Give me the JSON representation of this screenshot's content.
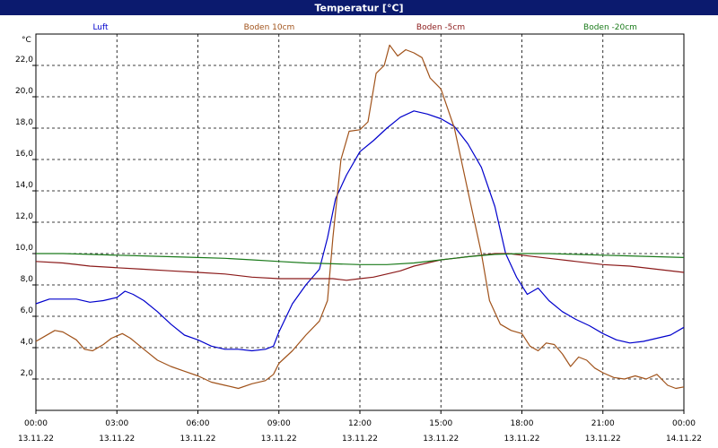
{
  "window": {
    "title": "Temperatur [°C]"
  },
  "colors": {
    "title_bar": "#0b1a6e",
    "title_text": "#ffffff"
  },
  "chart_data": {
    "type": "line",
    "title": "Temperatur [°C]",
    "ylabel": "°C",
    "xlabel": "",
    "grid": true,
    "legend_placement": "top",
    "ylim": [
      0,
      24
    ],
    "xlim": [
      0,
      24
    ],
    "y_ticks": [
      "2,0",
      "4,0",
      "6,0",
      "8,0",
      "10,0",
      "12,0",
      "14,0",
      "16,0",
      "18,0",
      "20,0",
      "22,0"
    ],
    "x_ticks": [
      {
        "time": "00:00",
        "date": "13.11.22"
      },
      {
        "time": "03:00",
        "date": "13.11.22"
      },
      {
        "time": "06:00",
        "date": "13.11.22"
      },
      {
        "time": "09:00",
        "date": "13.11.22"
      },
      {
        "time": "12:00",
        "date": "13.11.22"
      },
      {
        "time": "15:00",
        "date": "13.11.22"
      },
      {
        "time": "18:00",
        "date": "13.11.22"
      },
      {
        "time": "21:00",
        "date": "13.11.22"
      },
      {
        "time": "00:00",
        "date": "14.11.22"
      }
    ],
    "x_unit": "hours since 13.11.22 00:00",
    "series": [
      {
        "name": "Luft",
        "color": "#0000cc",
        "points": [
          [
            0,
            6.8
          ],
          [
            0.5,
            7.1
          ],
          [
            1,
            7.1
          ],
          [
            1.5,
            7.1
          ],
          [
            2,
            6.9
          ],
          [
            2.5,
            7.0
          ],
          [
            3,
            7.2
          ],
          [
            3.3,
            7.6
          ],
          [
            3.6,
            7.4
          ],
          [
            4,
            7.0
          ],
          [
            4.5,
            6.3
          ],
          [
            5,
            5.5
          ],
          [
            5.5,
            4.8
          ],
          [
            6,
            4.5
          ],
          [
            6.5,
            4.1
          ],
          [
            7,
            3.9
          ],
          [
            7.5,
            3.9
          ],
          [
            8,
            3.8
          ],
          [
            8.5,
            3.9
          ],
          [
            8.8,
            4.1
          ],
          [
            9,
            5.0
          ],
          [
            9.5,
            6.8
          ],
          [
            10,
            8.0
          ],
          [
            10.5,
            9.0
          ],
          [
            10.8,
            11.0
          ],
          [
            11.1,
            13.5
          ],
          [
            11.5,
            15.0
          ],
          [
            12,
            16.5
          ],
          [
            12.5,
            17.2
          ],
          [
            13,
            18.0
          ],
          [
            13.5,
            18.7
          ],
          [
            14,
            19.1
          ],
          [
            14.5,
            18.9
          ],
          [
            15,
            18.6
          ],
          [
            15.5,
            18.1
          ],
          [
            16,
            17.0
          ],
          [
            16.5,
            15.5
          ],
          [
            17,
            13.0
          ],
          [
            17.4,
            10.0
          ],
          [
            17.8,
            8.5
          ],
          [
            18.2,
            7.4
          ],
          [
            18.6,
            7.8
          ],
          [
            19,
            7.0
          ],
          [
            19.5,
            6.3
          ],
          [
            20,
            5.8
          ],
          [
            20.5,
            5.4
          ],
          [
            21,
            4.9
          ],
          [
            21.5,
            4.5
          ],
          [
            22,
            4.3
          ],
          [
            22.5,
            4.4
          ],
          [
            23,
            4.6
          ],
          [
            23.5,
            4.8
          ],
          [
            24,
            5.3
          ]
        ]
      },
      {
        "name": "Boden 10cm",
        "color": "#a0521a",
        "points": [
          [
            0,
            4.4
          ],
          [
            0.3,
            4.7
          ],
          [
            0.7,
            5.1
          ],
          [
            1,
            5.0
          ],
          [
            1.5,
            4.5
          ],
          [
            1.8,
            3.9
          ],
          [
            2.1,
            3.8
          ],
          [
            2.5,
            4.2
          ],
          [
            2.8,
            4.6
          ],
          [
            3.2,
            4.9
          ],
          [
            3.5,
            4.6
          ],
          [
            4,
            3.9
          ],
          [
            4.5,
            3.2
          ],
          [
            5,
            2.8
          ],
          [
            5.5,
            2.5
          ],
          [
            6,
            2.2
          ],
          [
            6.5,
            1.8
          ],
          [
            7,
            1.6
          ],
          [
            7.5,
            1.4
          ],
          [
            8,
            1.7
          ],
          [
            8.5,
            1.9
          ],
          [
            8.8,
            2.3
          ],
          [
            9,
            3.0
          ],
          [
            9.5,
            3.8
          ],
          [
            10,
            4.8
          ],
          [
            10.5,
            5.7
          ],
          [
            10.8,
            7.0
          ],
          [
            11.0,
            11.0
          ],
          [
            11.3,
            16.0
          ],
          [
            11.6,
            17.8
          ],
          [
            12,
            17.9
          ],
          [
            12.3,
            18.4
          ],
          [
            12.6,
            21.5
          ],
          [
            12.9,
            22.0
          ],
          [
            13.1,
            23.3
          ],
          [
            13.4,
            22.6
          ],
          [
            13.7,
            23.0
          ],
          [
            14,
            22.8
          ],
          [
            14.3,
            22.5
          ],
          [
            14.6,
            21.2
          ],
          [
            15,
            20.5
          ],
          [
            15.5,
            18.0
          ],
          [
            16,
            14.0
          ],
          [
            16.5,
            10.0
          ],
          [
            16.8,
            7.0
          ],
          [
            17.2,
            5.5
          ],
          [
            17.6,
            5.1
          ],
          [
            18,
            4.9
          ],
          [
            18.3,
            4.1
          ],
          [
            18.6,
            3.8
          ],
          [
            18.9,
            4.3
          ],
          [
            19.2,
            4.2
          ],
          [
            19.5,
            3.6
          ],
          [
            19.8,
            2.8
          ],
          [
            20.1,
            3.4
          ],
          [
            20.4,
            3.2
          ],
          [
            20.7,
            2.7
          ],
          [
            21,
            2.4
          ],
          [
            21.4,
            2.1
          ],
          [
            21.8,
            2.0
          ],
          [
            22.2,
            2.2
          ],
          [
            22.6,
            2.0
          ],
          [
            23,
            2.3
          ],
          [
            23.4,
            1.6
          ],
          [
            23.7,
            1.4
          ],
          [
            24,
            1.5
          ]
        ]
      },
      {
        "name": "Boden -5cm",
        "color": "#8b1a1a",
        "points": [
          [
            0,
            9.5
          ],
          [
            1,
            9.4
          ],
          [
            2,
            9.2
          ],
          [
            3,
            9.1
          ],
          [
            4,
            9.0
          ],
          [
            5,
            8.9
          ],
          [
            6,
            8.8
          ],
          [
            7,
            8.7
          ],
          [
            8,
            8.5
          ],
          [
            9,
            8.4
          ],
          [
            10,
            8.4
          ],
          [
            11,
            8.4
          ],
          [
            11.5,
            8.3
          ],
          [
            12,
            8.4
          ],
          [
            12.5,
            8.5
          ],
          [
            13,
            8.7
          ],
          [
            13.5,
            8.9
          ],
          [
            14,
            9.2
          ],
          [
            14.5,
            9.4
          ],
          [
            15,
            9.6
          ],
          [
            15.5,
            9.7
          ],
          [
            16,
            9.8
          ],
          [
            16.5,
            9.9
          ],
          [
            17,
            10.0
          ],
          [
            17.5,
            10.0
          ],
          [
            18,
            9.9
          ],
          [
            19,
            9.7
          ],
          [
            20,
            9.5
          ],
          [
            21,
            9.3
          ],
          [
            22,
            9.2
          ],
          [
            23,
            9.0
          ],
          [
            24,
            8.8
          ]
        ]
      },
      {
        "name": "Boden -20cm",
        "color": "#1a7a1a",
        "points": [
          [
            0,
            10.0
          ],
          [
            1,
            10.0
          ],
          [
            2,
            9.95
          ],
          [
            3,
            9.9
          ],
          [
            4,
            9.85
          ],
          [
            5,
            9.8
          ],
          [
            6,
            9.75
          ],
          [
            7,
            9.7
          ],
          [
            8,
            9.6
          ],
          [
            9,
            9.5
          ],
          [
            10,
            9.4
          ],
          [
            11,
            9.35
          ],
          [
            12,
            9.3
          ],
          [
            13,
            9.3
          ],
          [
            14,
            9.4
          ],
          [
            15,
            9.6
          ],
          [
            16,
            9.8
          ],
          [
            17,
            9.95
          ],
          [
            18,
            10.0
          ],
          [
            19,
            10.0
          ],
          [
            20,
            9.95
          ],
          [
            21,
            9.9
          ],
          [
            22,
            9.85
          ],
          [
            23,
            9.8
          ],
          [
            24,
            9.75
          ]
        ]
      }
    ]
  }
}
